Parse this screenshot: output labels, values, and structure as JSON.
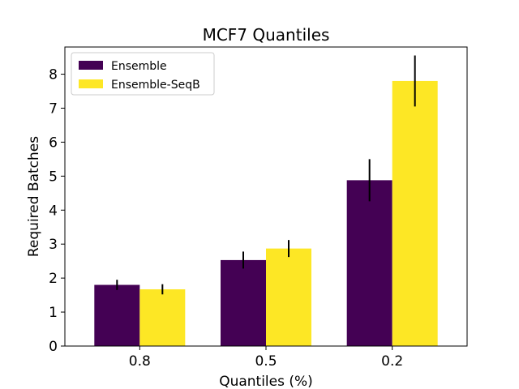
{
  "chart_data": {
    "type": "bar",
    "title": "MCF7 Quantiles",
    "xlabel": "Quantiles (%)",
    "ylabel": "Required Batches",
    "categories": [
      "0.8",
      "0.5",
      "0.2"
    ],
    "ylim": [
      0,
      8.8
    ],
    "yticks": [
      0,
      1,
      2,
      3,
      4,
      5,
      6,
      7,
      8
    ],
    "legend_position": "top-left",
    "series": [
      {
        "name": "Ensemble",
        "color": "#440154",
        "values": [
          1.8,
          2.53,
          4.88
        ],
        "errors": [
          0.15,
          0.25,
          0.62
        ]
      },
      {
        "name": "Ensemble-SeqB",
        "color": "#fde725",
        "values": [
          1.67,
          2.87,
          7.8
        ],
        "errors": [
          0.15,
          0.25,
          0.75
        ]
      }
    ]
  }
}
